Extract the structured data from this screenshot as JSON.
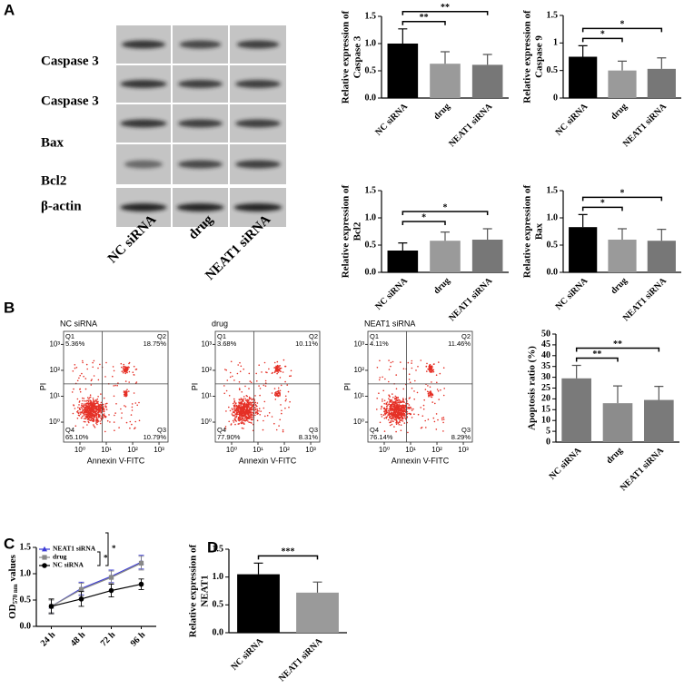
{
  "panel_labels": [
    "A",
    "B",
    "C",
    "D"
  ],
  "blot": {
    "proteins": [
      "Caspase 3",
      "Caspase 3",
      "Bax",
      "Bcl2",
      "β-actin"
    ],
    "lanes": [
      "NC siRNA",
      "drug",
      "NEAT1 siRNA"
    ]
  },
  "chart_data": [
    {
      "type": "bar",
      "ylabel": [
        "Relative expression of",
        "Caspase 3"
      ],
      "categories": [
        "NC siRNA",
        "drug",
        "NEAT1 siRNA"
      ],
      "values": [
        1.0,
        0.63,
        0.61
      ],
      "errors": [
        0.27,
        0.22,
        0.19
      ],
      "colors": [
        "#000000",
        "#9a9a9a",
        "#777777"
      ],
      "ylim": [
        0,
        1.5
      ],
      "yticks": [
        {
          "value": 0,
          "label": "0.0"
        },
        0.5,
        {
          "value": 1,
          "label": "1.0"
        },
        1.5
      ],
      "significance": [
        {
          "from": 0,
          "to": 1,
          "label": "**"
        },
        {
          "from": 0,
          "to": 2,
          "label": "**"
        }
      ]
    },
    {
      "type": "bar",
      "ylabel": [
        "Relative expression of",
        "Caspase 9"
      ],
      "categories": [
        "NC siRNA",
        "drug",
        "NEAT1 siRNA"
      ],
      "values": [
        0.75,
        0.5,
        0.53
      ],
      "errors": [
        0.2,
        0.17,
        0.2
      ],
      "colors": [
        "#000000",
        "#9a9a9a",
        "#777777"
      ],
      "ylim": [
        0,
        1.5
      ],
      "yticks": [
        {
          "value": 0,
          "label": "0"
        },
        0.5,
        {
          "value": 1,
          "label": "1"
        },
        1.5
      ],
      "significance": [
        {
          "from": 0,
          "to": 1,
          "label": "*"
        },
        {
          "from": 0,
          "to": 2,
          "label": "*"
        }
      ]
    },
    {
      "type": "bar",
      "ylabel": [
        "Relative expression of",
        "Bcl2"
      ],
      "categories": [
        "NC siRNA",
        "drug",
        "NEAT1 siRNA"
      ],
      "values": [
        0.4,
        0.58,
        0.6
      ],
      "errors": [
        0.14,
        0.16,
        0.2
      ],
      "colors": [
        "#000000",
        "#9a9a9a",
        "#777777"
      ],
      "ylim": [
        0,
        1.5
      ],
      "yticks": [
        {
          "value": 0,
          "label": "0.0"
        },
        0.5,
        {
          "value": 1,
          "label": "1.0"
        },
        1.5
      ],
      "significance": [
        {
          "from": 0,
          "to": 1,
          "label": "*"
        },
        {
          "from": 0,
          "to": 2,
          "label": "*"
        }
      ]
    },
    {
      "type": "bar",
      "ylabel": [
        "Relative expression of",
        "Bax"
      ],
      "categories": [
        "NC siRNA",
        "drug",
        "NEAT1 siRNA"
      ],
      "values": [
        0.83,
        0.6,
        0.58
      ],
      "errors": [
        0.23,
        0.2,
        0.21
      ],
      "colors": [
        "#000000",
        "#9a9a9a",
        "#777777"
      ],
      "ylim": [
        0,
        1.5
      ],
      "yticks": [
        {
          "value": 0,
          "label": "0.0"
        },
        0.5,
        {
          "value": 1,
          "label": "1.0"
        },
        1.5
      ],
      "significance": [
        {
          "from": 0,
          "to": 1,
          "label": "*"
        },
        {
          "from": 0,
          "to": 2,
          "label": "*"
        }
      ]
    },
    {
      "type": "flow",
      "title": "NC siRNA",
      "xlabel": "Annexin V-FITC",
      "ylabel": "PI",
      "log_scale": true,
      "color": "#e53026",
      "xlim": [
        0.24,
        2200
      ],
      "ylim": [
        0.17,
        3200
      ],
      "xticks": [
        {
          "value": 1,
          "label": "10⁰"
        },
        {
          "value": 10,
          "label": "10¹"
        },
        {
          "value": 100,
          "label": "10²"
        },
        {
          "value": 1000,
          "label": "10³"
        }
      ],
      "yticks": [
        {
          "value": 1,
          "label": "10⁰"
        },
        {
          "value": 10,
          "label": "10¹"
        },
        {
          "value": 100,
          "label": "10²"
        },
        {
          "value": 1000,
          "label": "10³"
        }
      ],
      "gate": [
        7,
        30
      ],
      "quadrants": [
        {
          "name": "Q1",
          "value": 5.36,
          "label": "5.36%"
        },
        {
          "name": "Q2",
          "value": 18.75,
          "label": "18.75%"
        },
        {
          "name": "Q3",
          "value": 10.79,
          "label": "10.79%"
        },
        {
          "name": "Q4",
          "value": 65.1,
          "label": "65.10%"
        }
      ]
    },
    {
      "type": "flow",
      "title": "drug",
      "xlabel": "Annexin V-FITC",
      "ylabel": "PI",
      "log_scale": true,
      "color": "#e53026",
      "xlim": [
        0.24,
        2200
      ],
      "ylim": [
        0.17,
        3200
      ],
      "xticks": [
        {
          "value": 1,
          "label": "10⁰"
        },
        {
          "value": 10,
          "label": "10¹"
        },
        {
          "value": 100,
          "label": "10²"
        },
        {
          "value": 1000,
          "label": "10³"
        }
      ],
      "yticks": [
        {
          "value": 1,
          "label": "10⁰"
        },
        {
          "value": 10,
          "label": "10¹"
        },
        {
          "value": 100,
          "label": "10²"
        },
        {
          "value": 1000,
          "label": "10³"
        }
      ],
      "gate": [
        7,
        30
      ],
      "quadrants": [
        {
          "name": "Q1",
          "value": 3.68,
          "label": "3.68%"
        },
        {
          "name": "Q2",
          "value": 10.11,
          "label": "10.11%"
        },
        {
          "name": "Q3",
          "value": 8.31,
          "label": "8.31%"
        },
        {
          "name": "Q4",
          "value": 77.9,
          "label": "77.90%"
        }
      ]
    },
    {
      "type": "flow",
      "title": "NEAT1 siRNA",
      "xlabel": "Annexin V-FITC",
      "ylabel": "PI",
      "log_scale": true,
      "color": "#e53026",
      "xlim": [
        0.24,
        2200
      ],
      "ylim": [
        0.17,
        3200
      ],
      "xticks": [
        {
          "value": 1,
          "label": "10⁰"
        },
        {
          "value": 10,
          "label": "10¹"
        },
        {
          "value": 100,
          "label": "10²"
        },
        {
          "value": 1000,
          "label": "10³"
        }
      ],
      "yticks": [
        {
          "value": 1,
          "label": "10⁰"
        },
        {
          "value": 10,
          "label": "10¹"
        },
        {
          "value": 100,
          "label": "10²"
        },
        {
          "value": 1000,
          "label": "10³"
        }
      ],
      "gate": [
        7,
        30
      ],
      "quadrants": [
        {
          "name": "Q1",
          "value": 4.11,
          "label": "4.11%"
        },
        {
          "name": "Q2",
          "value": 11.46,
          "label": "11.46%"
        },
        {
          "name": "Q3",
          "value": 8.29,
          "label": "8.29%"
        },
        {
          "name": "Q4",
          "value": 76.14,
          "label": "76.14%"
        }
      ]
    },
    {
      "type": "bar",
      "ylabel": [
        "Apoptosis ratio (%)"
      ],
      "categories": [
        "NC siRNA",
        "drug",
        "NEAT1 siRNA"
      ],
      "values": [
        29.5,
        18,
        19.5
      ],
      "errors": [
        6,
        8,
        6.3
      ],
      "colors": [
        "#7a7a7a",
        "#8c8c8c",
        "#7a7a7a"
      ],
      "ylim": [
        0,
        50
      ],
      "yticks": [
        0,
        5,
        10,
        15,
        20,
        25,
        30,
        35,
        40,
        45,
        50
      ],
      "significance": [
        {
          "from": 0,
          "to": 1,
          "label": "**"
        },
        {
          "from": 0,
          "to": 2,
          "label": "**"
        }
      ]
    },
    {
      "type": "line",
      "ylabel": [
        "OD",
        "570 nm",
        "values"
      ],
      "categories": [
        "24 h",
        "48 h",
        "72 h",
        "96 h"
      ],
      "ylim": [
        0,
        1.5
      ],
      "yticks": [
        {
          "value": 0,
          "label": "0.0"
        },
        0.5,
        {
          "value": 1,
          "label": "1.0"
        },
        1.5
      ],
      "series": [
        {
          "name": "NEAT1 siRNA",
          "color": "#3b3bd6",
          "marker": "triangle",
          "values": [
            0.38,
            0.72,
            0.95,
            1.22
          ],
          "errors": [
            0.12,
            0.12,
            0.12,
            0.13
          ]
        },
        {
          "name": "drug",
          "color": "#888888",
          "marker": "square",
          "values": [
            0.38,
            0.7,
            0.93,
            1.2
          ],
          "errors": [
            0.12,
            0.12,
            0.12,
            0.13
          ]
        },
        {
          "name": "NC siRNA",
          "color": "#000000",
          "marker": "circle",
          "values": [
            0.38,
            0.52,
            0.68,
            0.8
          ],
          "errors": [
            0.14,
            0.14,
            0.12,
            0.1
          ]
        }
      ],
      "significance": [
        {
          "from": 2,
          "to": 1,
          "label": "*"
        },
        {
          "from": 2,
          "to": 0,
          "label": "*"
        }
      ]
    },
    {
      "type": "bar",
      "ylabel": [
        "Relative expression of",
        "NEAT1"
      ],
      "categories": [
        "NC siRNA",
        "NEAT1 siRNA"
      ],
      "values": [
        1.05,
        0.72
      ],
      "errors": [
        0.2,
        0.19
      ],
      "colors": [
        "#000000",
        "#9a9a9a"
      ],
      "ylim": [
        0,
        1.5
      ],
      "yticks": [
        {
          "value": 0,
          "label": "0.0"
        },
        0.5,
        {
          "value": 1,
          "label": "1.0"
        },
        1.5
      ],
      "significance": [
        {
          "from": 0,
          "to": 1,
          "label": "***"
        }
      ]
    }
  ]
}
